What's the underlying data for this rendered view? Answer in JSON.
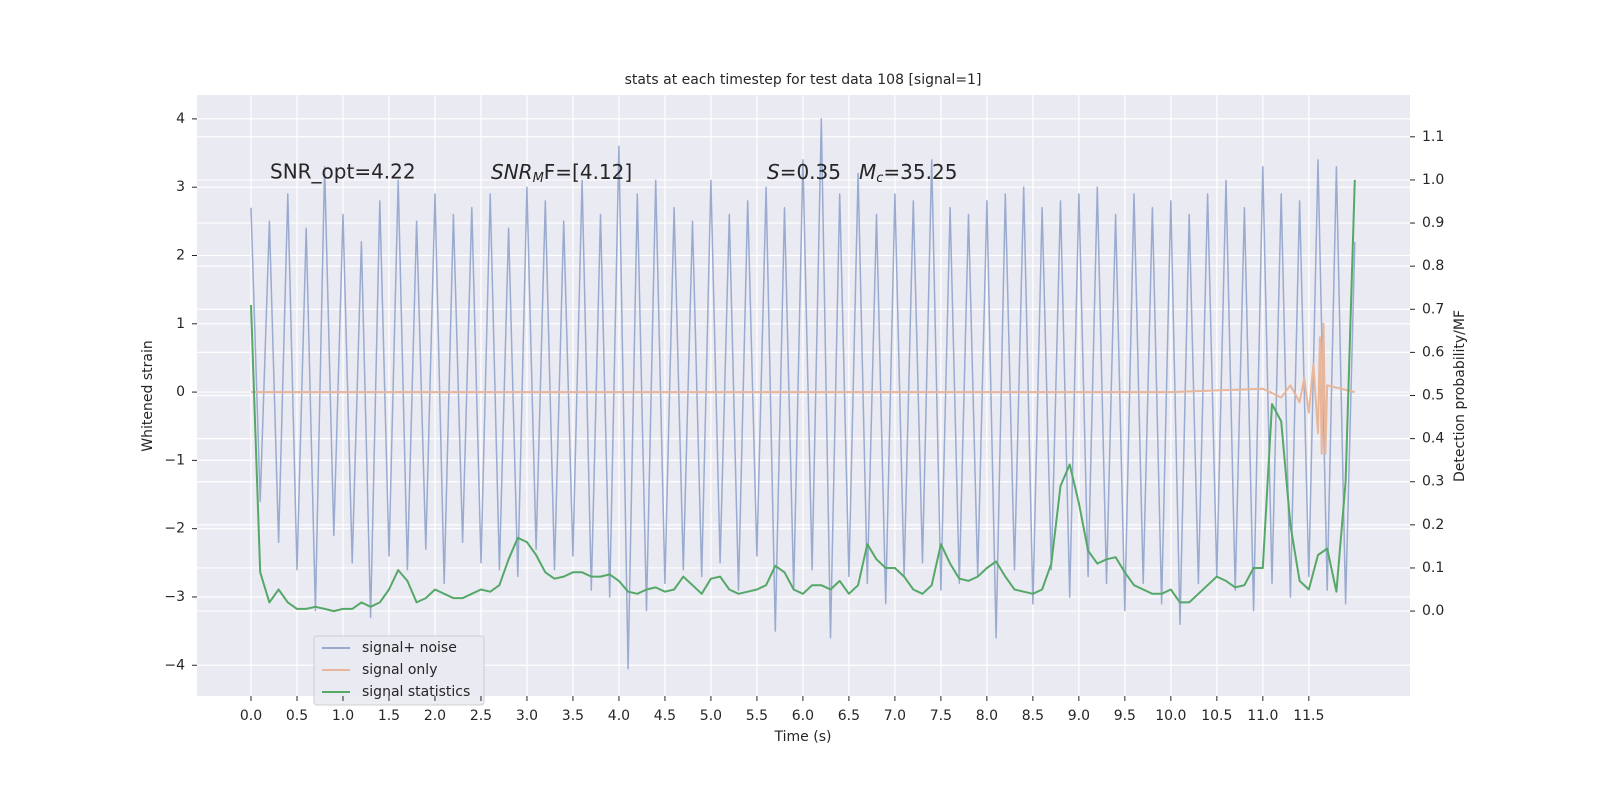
{
  "chart_data": {
    "type": "line",
    "title": "stats at each timestep for test data 108 [signal=1]",
    "xlabel": "Time (s)",
    "ylabel": "Whitened strain",
    "y2label": "Detection probability/MF",
    "annotations": [
      {
        "parts": [
          "SNR_opt=4.22"
        ]
      },
      {
        "parts": [
          "SNR",
          "M",
          "F=[4.12]"
        ]
      },
      {
        "parts": [
          "S",
          "=0.35"
        ]
      },
      {
        "parts": [
          "M",
          "c",
          "=35.25"
        ]
      }
    ],
    "x": [
      0,
      0.1,
      0.2,
      0.3,
      0.4,
      0.5,
      0.6,
      0.7,
      0.8,
      0.9,
      1,
      1.1,
      1.2,
      1.3,
      1.4,
      1.5,
      1.6,
      1.7,
      1.8,
      1.9,
      2,
      2.1,
      2.2,
      2.3,
      2.4,
      2.5,
      2.6,
      2.7,
      2.8,
      2.9,
      3,
      3.1,
      3.2,
      3.3,
      3.4,
      3.5,
      3.6,
      3.7,
      3.8,
      3.9,
      4,
      4.1,
      4.2,
      4.3,
      4.4,
      4.5,
      4.6,
      4.7,
      4.8,
      4.9,
      5,
      5.1,
      5.2,
      5.3,
      5.4,
      5.5,
      5.6,
      5.7,
      5.8,
      5.9,
      6,
      6.1,
      6.2,
      6.3,
      6.4,
      6.5,
      6.6,
      6.7,
      6.8,
      6.9,
      7,
      7.1,
      7.2,
      7.3,
      7.4,
      7.5,
      7.6,
      7.7,
      7.8,
      7.9,
      8,
      8.1,
      8.2,
      8.3,
      8.4,
      8.5,
      8.6,
      8.7,
      8.8,
      8.9,
      9,
      9.1,
      9.2,
      9.3,
      9.4,
      9.5,
      9.6,
      9.7,
      9.8,
      9.9,
      10,
      10.1,
      10.2,
      10.3,
      10.4,
      10.5,
      10.6,
      10.7,
      10.8,
      10.9,
      11,
      11.1,
      11.2,
      11.3,
      11.4,
      11.5,
      11.6,
      11.7,
      11.8,
      11.9,
      12
    ],
    "series": [
      {
        "name": "signal+ noise",
        "color": "#9aabd0",
        "values": [
          2.7,
          -1.6,
          2.5,
          -2.2,
          2.9,
          -2.6,
          2.4,
          -3.2,
          3.3,
          -2.1,
          2.6,
          -2.5,
          2.2,
          -3.3,
          2.8,
          -2.4,
          3.1,
          -2.6,
          2.5,
          -2.3,
          2.9,
          -2.8,
          2.6,
          -2.2,
          2.7,
          -2.5,
          2.9,
          -2.6,
          2.4,
          -2.7,
          3.0,
          -2.3,
          2.8,
          -2.6,
          2.5,
          -2.4,
          3.1,
          -2.9,
          2.6,
          -3.0,
          3.6,
          -4.05,
          2.9,
          -3.2,
          3.1,
          -2.8,
          2.7,
          -2.6,
          2.5,
          -2.7,
          3.1,
          -2.5,
          2.6,
          -2.9,
          2.8,
          -2.4,
          3.0,
          -3.5,
          2.7,
          -2.9,
          3.4,
          -2.6,
          4.0,
          -3.6,
          2.9,
          -2.7,
          3.2,
          -2.8,
          2.6,
          -3.1,
          2.9,
          -2.7,
          2.8,
          -2.5,
          3.4,
          -2.9,
          2.7,
          -2.8,
          2.6,
          -2.7,
          2.8,
          -3.6,
          2.9,
          -2.6,
          3.0,
          -3.1,
          2.7,
          -2.6,
          2.8,
          -3.0,
          2.9,
          -2.7,
          3.0,
          -2.8,
          2.6,
          -3.2,
          2.9,
          -2.8,
          2.7,
          -3.1,
          2.8,
          -3.4,
          2.6,
          -2.8,
          2.9,
          -2.7,
          3.1,
          -2.9,
          2.7,
          -3.2,
          3.3,
          -2.8,
          2.9,
          -3.0,
          2.8,
          -2.7,
          3.4,
          -2.9,
          3.3,
          -3.1,
          2.2
        ]
      },
      {
        "name": "signal only",
        "color": "#e8b69b",
        "x": [
          0,
          10,
          11,
          11.2,
          11.3,
          11.4,
          11.45,
          11.5,
          11.55,
          11.6,
          11.62,
          11.64,
          11.66,
          11.68,
          11.7,
          12
        ],
        "values": [
          0,
          0,
          0.05,
          -0.08,
          0.1,
          -0.15,
          0.2,
          -0.3,
          0.4,
          -0.6,
          0.8,
          -0.9,
          1.0,
          -0.9,
          0.1,
          0
        ]
      },
      {
        "name": "signal statistics",
        "color": "#55a868",
        "axis": "y2",
        "values": [
          0.71,
          0.09,
          0.02,
          0.05,
          0.02,
          0.005,
          0.005,
          0.01,
          0.005,
          0,
          0.005,
          0.005,
          0.02,
          0.01,
          0.02,
          0.05,
          0.095,
          0.07,
          0.02,
          0.03,
          0.05,
          0.04,
          0.03,
          0.03,
          0.04,
          0.05,
          0.045,
          0.06,
          0.12,
          0.17,
          0.16,
          0.13,
          0.09,
          0.075,
          0.08,
          0.09,
          0.09,
          0.08,
          0.08,
          0.085,
          0.07,
          0.045,
          0.04,
          0.05,
          0.055,
          0.045,
          0.05,
          0.08,
          0.06,
          0.04,
          0.075,
          0.08,
          0.05,
          0.04,
          0.045,
          0.05,
          0.06,
          0.105,
          0.09,
          0.05,
          0.04,
          0.06,
          0.06,
          0.05,
          0.07,
          0.04,
          0.06,
          0.155,
          0.12,
          0.1,
          0.1,
          0.08,
          0.05,
          0.04,
          0.06,
          0.155,
          0.11,
          0.075,
          0.07,
          0.08,
          0.1,
          0.115,
          0.08,
          0.05,
          0.045,
          0.04,
          0.05,
          0.11,
          0.29,
          0.34,
          0.25,
          0.14,
          0.11,
          0.12,
          0.125,
          0.09,
          0.06,
          0.05,
          0.04,
          0.04,
          0.05,
          0.02,
          0.02,
          0.04,
          0.06,
          0.08,
          0.07,
          0.055,
          0.06,
          0.1,
          0.1,
          0.48,
          0.44,
          0.2,
          0.07,
          0.05,
          0.13,
          0.145,
          0.045,
          0.3,
          1.0
        ]
      }
    ],
    "xlim": [
      -0.587,
      12.6
    ],
    "ylim": [
      -4.45,
      4.35
    ],
    "y2lim": [
      -0.197,
      1.197
    ],
    "xticks": [
      {
        "value": 0,
        "label": "0.0"
      },
      {
        "value": 0.5,
        "label": "0.5"
      },
      {
        "value": 1,
        "label": "1.0"
      },
      {
        "value": 1.5,
        "label": "1.5"
      },
      {
        "value": 2,
        "label": "2.0"
      },
      {
        "value": 2.5,
        "label": "2.5"
      },
      {
        "value": 3,
        "label": "3.0"
      },
      {
        "value": 3.5,
        "label": "3.5"
      },
      {
        "value": 4,
        "label": "4.0"
      },
      {
        "value": 4.5,
        "label": "4.5"
      },
      {
        "value": 5,
        "label": "5.0"
      },
      {
        "value": 5.5,
        "label": "5.5"
      },
      {
        "value": 6,
        "label": "6.0"
      },
      {
        "value": 6.5,
        "label": "6.5"
      },
      {
        "value": 7,
        "label": "7.0"
      },
      {
        "value": 7.5,
        "label": "7.5"
      },
      {
        "value": 8,
        "label": "8.0"
      },
      {
        "value": 8.5,
        "label": "8.5"
      },
      {
        "value": 9,
        "label": "9.0"
      },
      {
        "value": 9.5,
        "label": "9.5"
      },
      {
        "value": 10,
        "label": "10.0"
      },
      {
        "value": 10.5,
        "label": "10.5"
      },
      {
        "value": 11,
        "label": "11.0"
      },
      {
        "value": 11.5,
        "label": "11.5"
      }
    ],
    "yticks": [
      {
        "value": -4,
        "label": "−4"
      },
      {
        "value": -3,
        "label": "−3"
      },
      {
        "value": -2,
        "label": "−2"
      },
      {
        "value": -1,
        "label": "−1"
      },
      0,
      1,
      2,
      3,
      4
    ],
    "y2ticks": [
      {
        "value": 0,
        "label": "0.0"
      },
      {
        "value": 0.1,
        "label": "0.1"
      },
      {
        "value": 0.2,
        "label": "0.2"
      },
      {
        "value": 0.3,
        "label": "0.3"
      },
      {
        "value": 0.4,
        "label": "0.4"
      },
      {
        "value": 0.5,
        "label": "0.5"
      },
      {
        "value": 0.6,
        "label": "0.6"
      },
      {
        "value": 0.7,
        "label": "0.7"
      },
      {
        "value": 0.8,
        "label": "0.8"
      },
      {
        "value": 0.9,
        "label": "0.9"
      },
      {
        "value": 1,
        "label": "1.0"
      },
      {
        "value": 1.1,
        "label": "1.1"
      }
    ],
    "grid": true,
    "background": "#eaeaf2",
    "legend": "lower left"
  }
}
